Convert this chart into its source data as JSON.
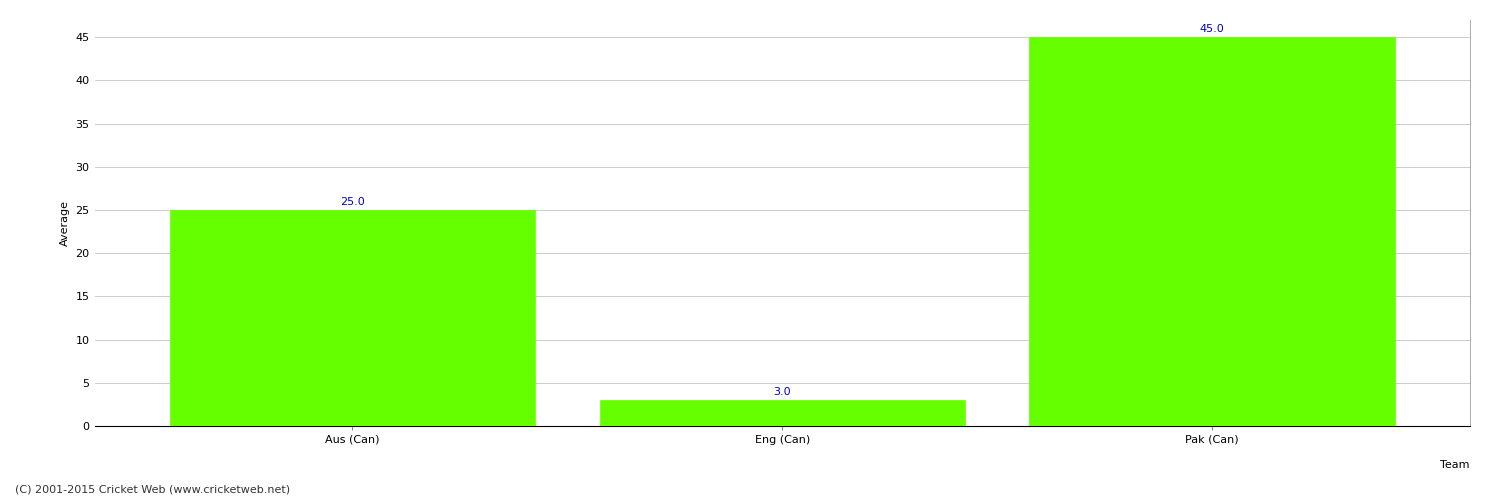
{
  "categories": [
    "Aus (Can)",
    "Eng (Can)",
    "Pak (Can)"
  ],
  "values": [
    25.0,
    3.0,
    45.0
  ],
  "bar_color": "#66ff00",
  "bar_edge_color": "#66ff00",
  "xlabel": "Team",
  "ylabel": "Average",
  "ylim": [
    0,
    47
  ],
  "yticks": [
    0,
    5,
    10,
    15,
    20,
    25,
    30,
    35,
    40,
    45
  ],
  "label_color": "#0000cc",
  "label_fontsize": 8,
  "tick_fontsize": 8,
  "xlabel_fontsize": 8,
  "ylabel_fontsize": 8,
  "grid_color": "#cccccc",
  "background_color": "#ffffff",
  "footer_text": "(C) 2001-2015 Cricket Web (www.cricketweb.net)",
  "footer_fontsize": 8,
  "footer_color": "#333333"
}
